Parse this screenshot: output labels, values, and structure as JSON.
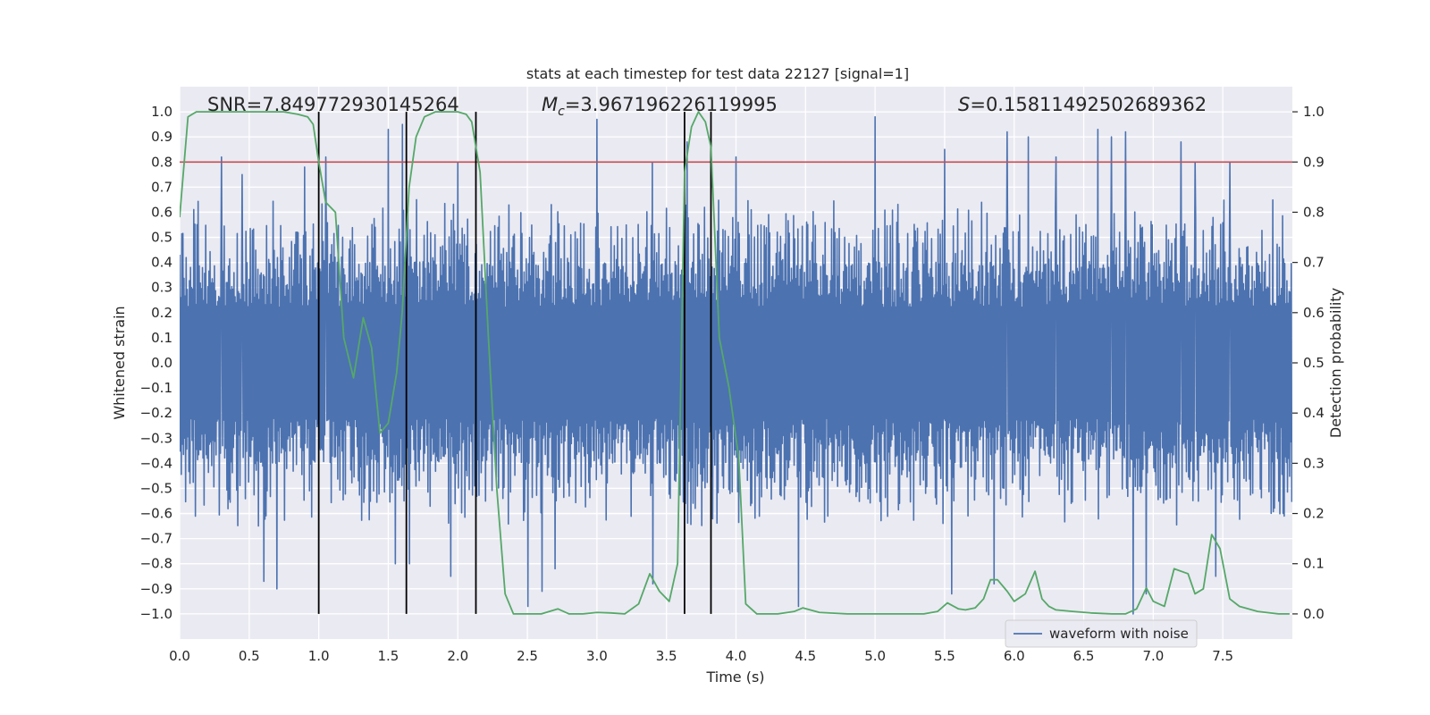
{
  "chart_data": {
    "type": "line",
    "title": "stats at each timestep for test data 22127 [signal=1]",
    "xlabel": "Time (s)",
    "ylabel": "Whitened strain",
    "y2label": "Detection probability",
    "xlim": [
      0.0,
      8.0
    ],
    "ylim": [
      -1.1,
      1.1
    ],
    "y2lim": [
      -0.05,
      1.05
    ],
    "grid": true,
    "x_ticks": [
      0.0,
      0.5,
      1.0,
      1.5,
      2.0,
      2.5,
      3.0,
      3.5,
      4.0,
      4.5,
      5.0,
      5.5,
      6.0,
      6.5,
      7.0,
      7.5
    ],
    "x_tick_labels": [
      "0.0",
      "0.5",
      "1.0",
      "1.5",
      "2.0",
      "2.5",
      "3.0",
      "3.5",
      "4.0",
      "4.5",
      "5.0",
      "5.5",
      "6.0",
      "6.5",
      "7.0",
      "7.5"
    ],
    "y_ticks": [
      1.0,
      0.9,
      0.8,
      0.7,
      0.6,
      0.5,
      0.4,
      0.3,
      0.2,
      0.1,
      0.0,
      -0.1,
      -0.2,
      -0.3,
      -0.4,
      -0.5,
      -0.6,
      -0.7,
      -0.8,
      -0.9,
      -1.0
    ],
    "y_tick_labels": [
      "1.0",
      "0.9",
      "0.8",
      "0.7",
      "0.6",
      "0.5",
      "0.4",
      "0.3",
      "0.2",
      "0.1",
      "0.0",
      "−0.1",
      "−0.2",
      "−0.3",
      "−0.4",
      "−0.5",
      "−0.6",
      "−0.7",
      "−0.8",
      "−0.9",
      "−1.0"
    ],
    "y2_ticks": [
      1.0,
      0.9,
      0.8,
      0.7,
      0.6,
      0.5,
      0.4,
      0.3,
      0.2,
      0.1,
      0.0
    ],
    "y2_tick_labels": [
      "1.0",
      "0.9",
      "0.8",
      "0.7",
      "0.6",
      "0.5",
      "0.4",
      "0.3",
      "0.2",
      "0.1",
      "0.0"
    ],
    "annotations": {
      "snr": "SNR=7.849772930145264",
      "mc_symbol": "M",
      "mc_sub": "c",
      "mc_value": "=3.967196226119995",
      "s_symbol": "S",
      "s_value": "=0.15811492502689362"
    },
    "threshold": {
      "value": 0.9,
      "axis": "right",
      "color": "#c44e52"
    },
    "vertical_lines": [
      1.0,
      1.63,
      2.13,
      3.63,
      3.82
    ],
    "waveform": {
      "name": "waveform with noise",
      "color": "#4c72b0",
      "sample_rate_hz": 256,
      "seed": 22127,
      "typical_envelope": [
        -0.45,
        0.45
      ],
      "peaks_up": [
        [
          0.3,
          0.82
        ],
        [
          0.45,
          0.75
        ],
        [
          0.9,
          0.78
        ],
        [
          1.05,
          0.82
        ],
        [
          1.5,
          0.93
        ],
        [
          1.6,
          0.95
        ],
        [
          2.0,
          0.8
        ],
        [
          3.0,
          0.97
        ],
        [
          3.4,
          0.8
        ],
        [
          3.65,
          0.88
        ],
        [
          4.0,
          0.82
        ],
        [
          5.0,
          0.98
        ],
        [
          5.5,
          0.85
        ],
        [
          5.95,
          0.92
        ],
        [
          6.1,
          0.9
        ],
        [
          6.3,
          0.82
        ],
        [
          6.6,
          0.93
        ],
        [
          6.7,
          0.9
        ],
        [
          6.8,
          0.92
        ],
        [
          7.2,
          0.88
        ],
        [
          7.3,
          0.8
        ],
        [
          7.55,
          0.8
        ]
      ],
      "peaks_down": [
        [
          0.6,
          -0.87
        ],
        [
          0.7,
          -0.9
        ],
        [
          1.55,
          -0.8
        ],
        [
          1.65,
          -0.8
        ],
        [
          1.95,
          -0.85
        ],
        [
          2.5,
          -0.97
        ],
        [
          2.6,
          -0.91
        ],
        [
          2.7,
          -0.82
        ],
        [
          3.4,
          -0.88
        ],
        [
          4.45,
          -0.97
        ],
        [
          5.55,
          -0.92
        ],
        [
          5.85,
          -0.88
        ],
        [
          6.85,
          -1.0
        ],
        [
          6.95,
          -0.92
        ],
        [
          7.45,
          -0.85
        ]
      ]
    },
    "detection_probability": {
      "color": "#55a868",
      "x": [
        0.0,
        0.06,
        0.12,
        0.25,
        0.4,
        0.6,
        0.75,
        0.85,
        0.92,
        0.96,
        1.0,
        1.05,
        1.12,
        1.18,
        1.25,
        1.32,
        1.38,
        1.44,
        1.5,
        1.56,
        1.6,
        1.65,
        1.7,
        1.76,
        1.84,
        1.92,
        2.0,
        2.06,
        2.1,
        2.16,
        2.22,
        2.28,
        2.34,
        2.4,
        2.5,
        2.6,
        2.72,
        2.8,
        2.9,
        3.0,
        3.1,
        3.2,
        3.3,
        3.38,
        3.45,
        3.52,
        3.58,
        3.63,
        3.68,
        3.73,
        3.78,
        3.82,
        3.88,
        3.95,
        4.02,
        4.07,
        4.15,
        4.3,
        4.42,
        4.48,
        4.6,
        4.8,
        5.0,
        5.2,
        5.35,
        5.45,
        5.52,
        5.6,
        5.65,
        5.72,
        5.78,
        5.83,
        5.88,
        5.95,
        6.0,
        6.08,
        6.15,
        6.2,
        6.25,
        6.3,
        6.42,
        6.55,
        6.7,
        6.8,
        6.88,
        6.95,
        7.0,
        7.08,
        7.15,
        7.25,
        7.3,
        7.36,
        7.42,
        7.48,
        7.55,
        7.62,
        7.75,
        7.9,
        7.98
      ],
      "y": [
        0.79,
        0.99,
        1.0,
        1.0,
        1.0,
        1.0,
        1.0,
        0.995,
        0.99,
        0.975,
        0.9,
        0.82,
        0.8,
        0.55,
        0.47,
        0.59,
        0.53,
        0.36,
        0.38,
        0.48,
        0.6,
        0.85,
        0.95,
        0.99,
        1.0,
        1.0,
        1.0,
        0.995,
        0.98,
        0.88,
        0.55,
        0.25,
        0.04,
        0.0,
        0.0,
        0.0,
        0.01,
        0.0,
        0.0,
        0.003,
        0.002,
        0.0,
        0.02,
        0.08,
        0.045,
        0.025,
        0.1,
        0.88,
        0.97,
        1.0,
        0.98,
        0.93,
        0.55,
        0.45,
        0.31,
        0.02,
        0.0,
        0.0,
        0.005,
        0.012,
        0.003,
        0.0,
        0.0,
        0.0,
        0.0,
        0.005,
        0.022,
        0.01,
        0.008,
        0.012,
        0.03,
        0.068,
        0.068,
        0.045,
        0.025,
        0.04,
        0.085,
        0.03,
        0.015,
        0.008,
        0.005,
        0.002,
        0.0,
        0.0,
        0.01,
        0.052,
        0.025,
        0.015,
        0.09,
        0.08,
        0.04,
        0.05,
        0.158,
        0.13,
        0.03,
        0.015,
        0.005,
        0.0,
        0.0
      ]
    }
  }
}
